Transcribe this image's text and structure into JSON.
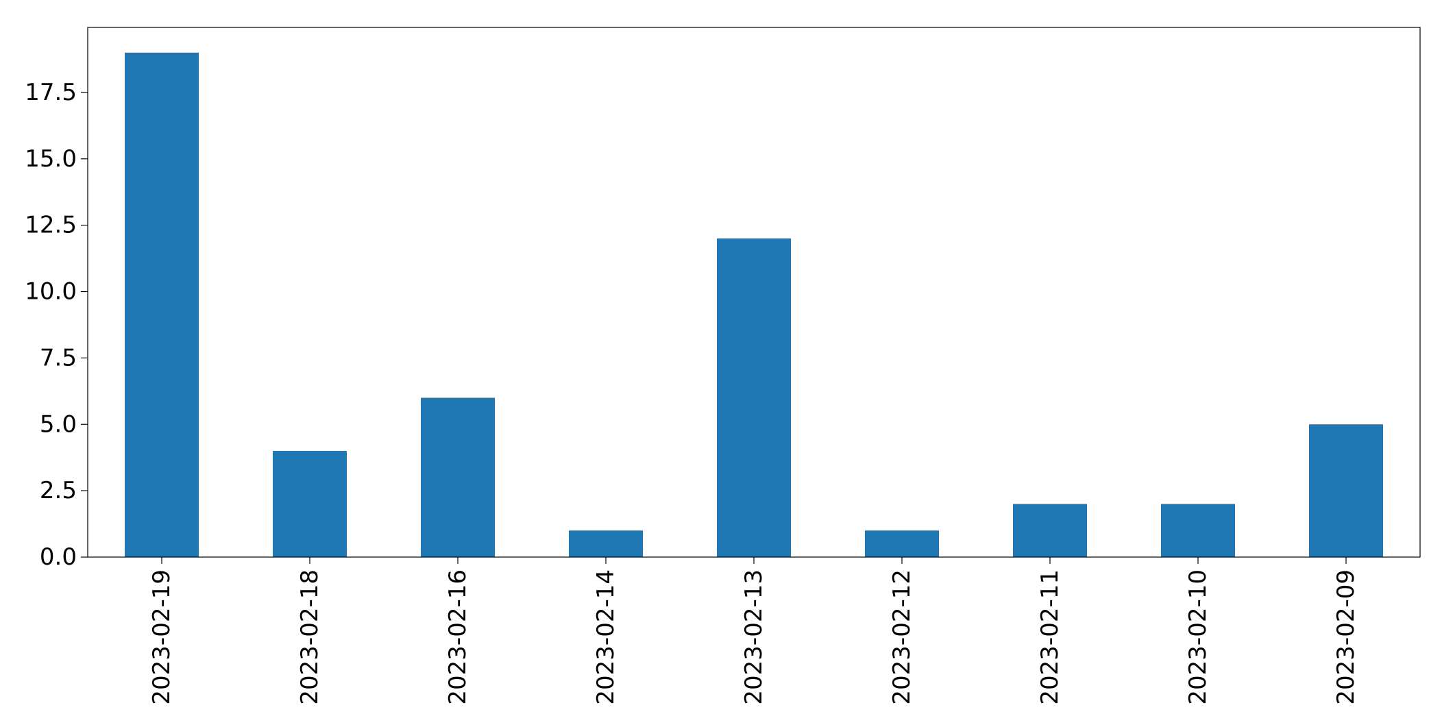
{
  "chart_data": {
    "type": "bar",
    "title": "",
    "xlabel": "",
    "ylabel": "",
    "categories": [
      "2023-02-19",
      "2023-02-18",
      "2023-02-16",
      "2023-02-14",
      "2023-02-13",
      "2023-02-12",
      "2023-02-11",
      "2023-02-10",
      "2023-02-09"
    ],
    "values": [
      19,
      4,
      6,
      1,
      12,
      1,
      2,
      2,
      5
    ],
    "ylim": [
      0,
      19.95
    ],
    "yticks": [
      0.0,
      2.5,
      5.0,
      7.5,
      10.0,
      12.5,
      15.0,
      17.5
    ],
    "ytick_labels": [
      "0.0",
      "2.5",
      "5.0",
      "7.5",
      "10.0",
      "12.5",
      "15.0",
      "17.5"
    ],
    "xtick_rotation": 90,
    "grid": false,
    "legend": "none",
    "bar_color": "#1f77b4"
  }
}
